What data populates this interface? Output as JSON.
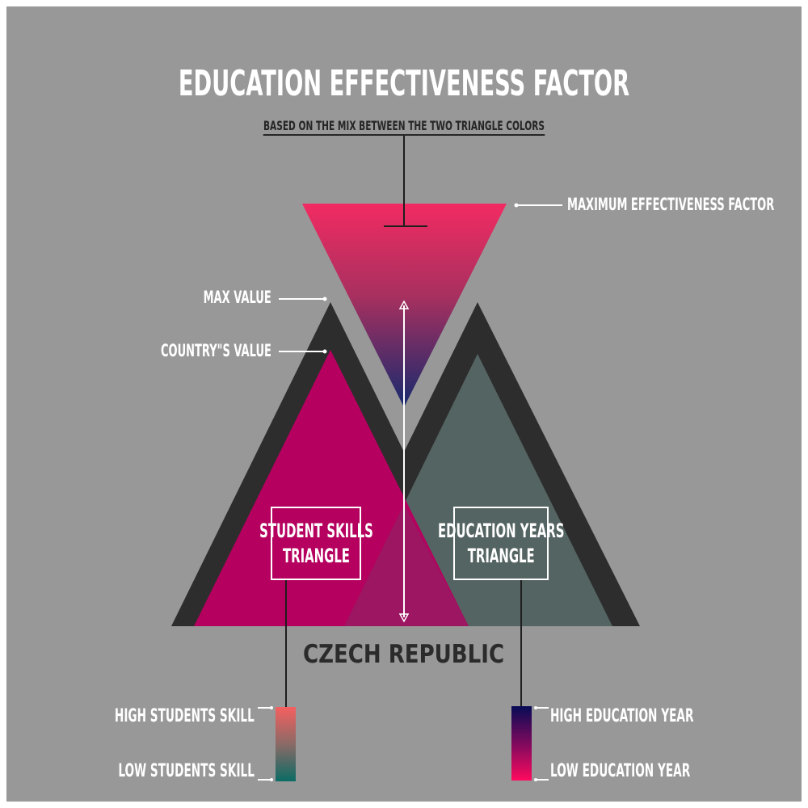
{
  "title": "EDUCATION EFFECTIVENESS FACTOR",
  "subtitle": "BASED ON THE MIX BETWEEN THE TWO TRIANGLE COLORS",
  "labels": {
    "max_effectiveness": "MAXIMUM EFFECTIVENESS FACTOR",
    "max_value": "MAX VALUE",
    "country_value": "COUNTRY\"S VALUE"
  },
  "triangles": {
    "student_skills": {
      "line1": "STUDENT SKILLS",
      "line2": "TRIANGLE"
    },
    "education_years": {
      "line1": "EDUCATION YEARS",
      "line2": "TRIANGLE"
    }
  },
  "country": "CZECH REPUBLIC",
  "legend": {
    "student_skill": {
      "high": "HIGH STUDENTS SKILL",
      "low": "LOW STUDENTS SKILL",
      "color_high": "#f06262",
      "color_low": "#0f6e66"
    },
    "education_year": {
      "high": "HIGH EDUCATION YEAR",
      "low": "LOW EDUCATION YEAR",
      "color_high": "#0c0a55",
      "color_low": "#ff0a5e"
    }
  },
  "colors": {
    "background": "#989898",
    "frame": "#2d2d2d",
    "student_fill": "#b5005f",
    "education_fill": "#546462",
    "overlap_fill": "#9c1662",
    "inverted_top": "#f22b62",
    "inverted_bottom": "#1c2a6c"
  }
}
